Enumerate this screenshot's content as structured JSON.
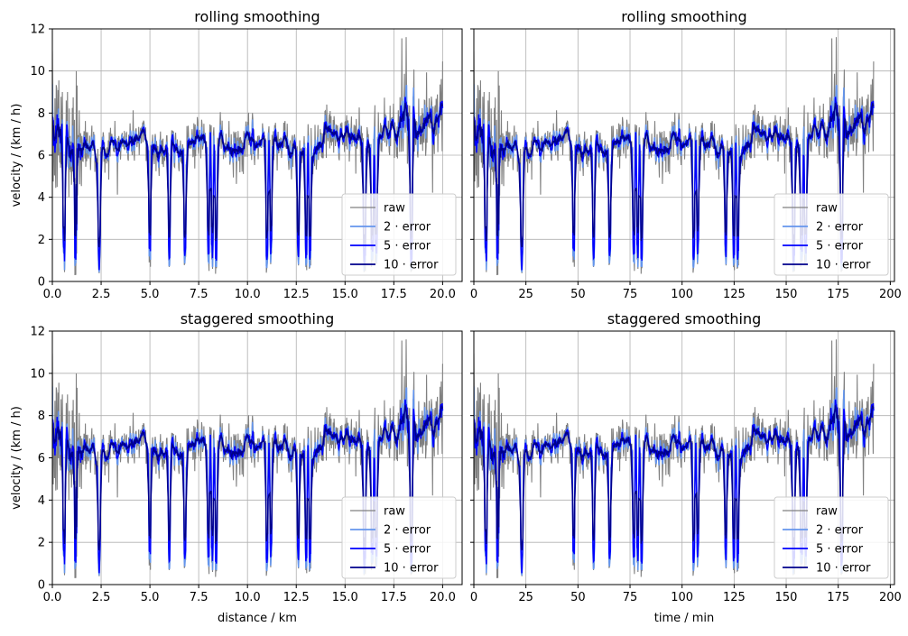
{
  "chart_data": [
    {
      "type": "line",
      "title": "rolling smoothing",
      "xlabel": "",
      "ylabel": "velocity / (km / h)",
      "xlim": [
        0,
        21
      ],
      "ylim": [
        0,
        12
      ],
      "xticks": [
        "0.0",
        "2.5",
        "5.0",
        "7.5",
        "10.0",
        "12.5",
        "15.0",
        "17.5",
        "20.0"
      ],
      "yticks": [
        "0",
        "2",
        "4",
        "6",
        "8",
        "10",
        "12"
      ],
      "show_yticklabels": true,
      "grid": true,
      "legend": "lower-right",
      "x_end": 20.0,
      "series": [
        {
          "name": "raw",
          "color": "#808080"
        },
        {
          "name": "2 · error",
          "color": "#6495ed"
        },
        {
          "name": "5 · error",
          "color": "#0000ff"
        },
        {
          "name": "10 · error",
          "color": "#00008b"
        }
      ]
    },
    {
      "type": "line",
      "title": "rolling smoothing",
      "xlabel": "",
      "ylabel": "",
      "xlim": [
        0,
        202
      ],
      "ylim": [
        0,
        12
      ],
      "xticks": [
        "0",
        "25",
        "50",
        "75",
        "100",
        "125",
        "150",
        "175",
        "200"
      ],
      "yticks": [
        "0",
        "2",
        "4",
        "6",
        "8",
        "10",
        "12"
      ],
      "show_yticklabels": false,
      "grid": true,
      "legend": "lower-right",
      "x_end": 192,
      "series": [
        {
          "name": "raw",
          "color": "#808080"
        },
        {
          "name": "2 · error",
          "color": "#6495ed"
        },
        {
          "name": "5 · error",
          "color": "#0000ff"
        },
        {
          "name": "10 · error",
          "color": "#00008b"
        }
      ]
    },
    {
      "type": "line",
      "title": "staggered smoothing",
      "xlabel": "distance / km",
      "ylabel": "velocity / (km / h)",
      "xlim": [
        0,
        21
      ],
      "ylim": [
        0,
        12
      ],
      "xticks": [
        "0.0",
        "2.5",
        "5.0",
        "7.5",
        "10.0",
        "12.5",
        "15.0",
        "17.5",
        "20.0"
      ],
      "yticks": [
        "0",
        "2",
        "4",
        "6",
        "8",
        "10",
        "12"
      ],
      "show_yticklabels": true,
      "grid": true,
      "legend": "lower-right",
      "x_end": 20.0,
      "series": [
        {
          "name": "raw",
          "color": "#808080"
        },
        {
          "name": "2 · error",
          "color": "#6495ed"
        },
        {
          "name": "5 · error",
          "color": "#0000ff"
        },
        {
          "name": "10 · error",
          "color": "#00008b"
        }
      ]
    },
    {
      "type": "line",
      "title": "staggered smoothing",
      "xlabel": "time / min",
      "ylabel": "",
      "xlim": [
        0,
        202
      ],
      "ylim": [
        0,
        12
      ],
      "xticks": [
        "0",
        "25",
        "50",
        "75",
        "100",
        "125",
        "150",
        "175",
        "200"
      ],
      "yticks": [
        "0",
        "2",
        "4",
        "6",
        "8",
        "10",
        "12"
      ],
      "show_yticklabels": false,
      "grid": true,
      "legend": "lower-right",
      "x_end": 192,
      "series": [
        {
          "name": "raw",
          "color": "#808080"
        },
        {
          "name": "2 · error",
          "color": "#6495ed"
        },
        {
          "name": "5 · error",
          "color": "#0000ff"
        },
        {
          "name": "10 · error",
          "color": "#00008b"
        }
      ]
    }
  ]
}
